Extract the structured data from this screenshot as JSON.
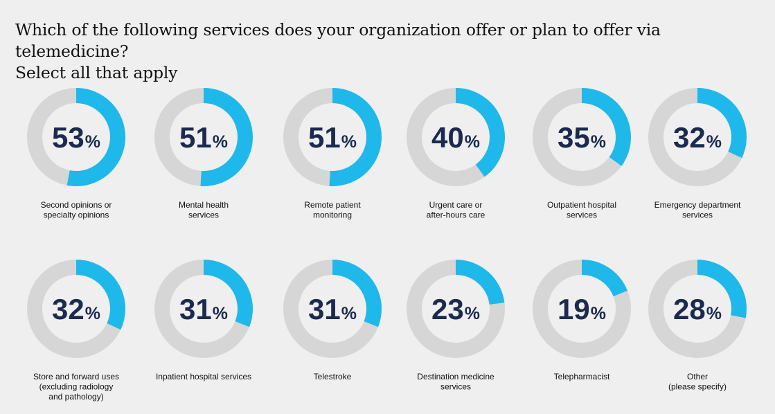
{
  "title_line1": "Which of the following services does your organization offer or plan to offer via telemedicine?",
  "title_line2": "Select all that apply",
  "colors": {
    "background": "#efefef",
    "track": "#d6d6d6",
    "fill": "#1fb8ea",
    "number": "#1b2a4e",
    "caption": "#111111"
  },
  "chart_data": {
    "type": "pie",
    "subtype": "donut-grid",
    "unit": "%",
    "max": 100,
    "items": [
      {
        "value": 53,
        "display": "53",
        "label_lines": [
          "Second opinions or",
          "specialty opinions"
        ]
      },
      {
        "value": 51,
        "display": "51",
        "label_lines": [
          "Mental health",
          "services"
        ]
      },
      {
        "value": 51,
        "display": "51",
        "label_lines": [
          "Remote patient",
          "monitoring"
        ]
      },
      {
        "value": 40,
        "display": "40",
        "label_lines": [
          "Urgent care or",
          "after-hours care"
        ]
      },
      {
        "value": 35,
        "display": "35",
        "label_lines": [
          "Outpatient hospital",
          "services"
        ]
      },
      {
        "value": 32,
        "display": "32",
        "label_lines": [
          "Emergency department",
          "services"
        ]
      },
      {
        "value": 32,
        "display": "32",
        "label_lines": [
          "Store and forward uses",
          "(excluding radiology",
          "and pathology)"
        ]
      },
      {
        "value": 31,
        "display": "31",
        "label_lines": [
          "Inpatient hospital services"
        ]
      },
      {
        "value": 31,
        "display": "31",
        "label_lines": [
          "Telestroke"
        ]
      },
      {
        "value": 23,
        "display": "23",
        "label_lines": [
          "Destination medicine",
          "services"
        ]
      },
      {
        "value": 19,
        "display": "19",
        "label_lines": [
          "Telepharmacist"
        ]
      },
      {
        "value": 28,
        "display": "28",
        "label_lines": [
          "Other",
          "(please specify)"
        ]
      }
    ]
  }
}
